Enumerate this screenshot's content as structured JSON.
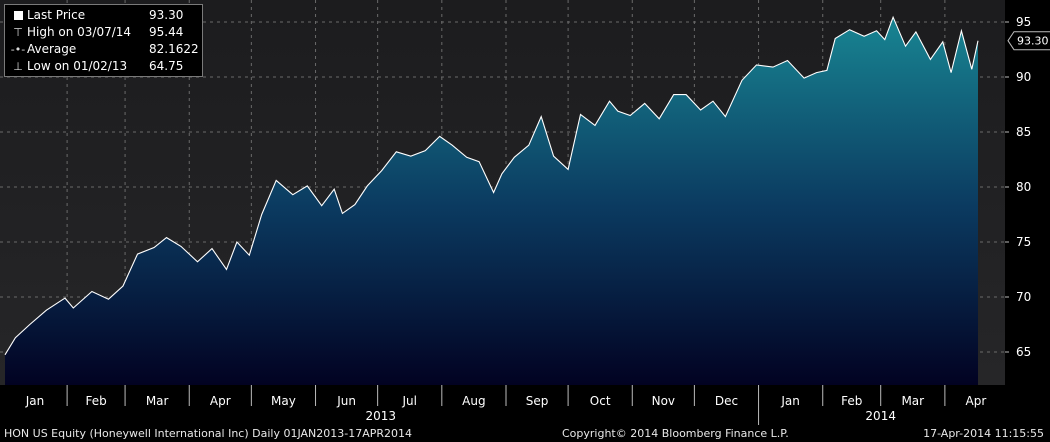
{
  "legend": {
    "last_price": {
      "label": "Last Price",
      "value": "93.30"
    },
    "high": {
      "label": "High on 03/07/14",
      "value": "95.44"
    },
    "average": {
      "label": "Average",
      "value": "82.1622"
    },
    "low": {
      "label": "Low on 01/02/13",
      "value": "64.75"
    }
  },
  "colors": {
    "background": "#000000",
    "plot_top": "#1c1c1e",
    "plot_bottom": "#262628",
    "area_top": "#17808f",
    "area_bottom": "#020222",
    "line": "#ffffff",
    "grid": "#6a6a6a"
  },
  "footer": {
    "left": "HON US Equity (Honeywell International Inc)  Daily 01JAN2013-17APR2014",
    "center": "Copyright© 2014 Bloomberg Finance L.P.",
    "right": "17-Apr-2014 11:15:55"
  },
  "chart_data": {
    "type": "area",
    "ylim": [
      62,
      97
    ],
    "yticks": [
      65,
      70,
      75,
      80,
      85,
      90,
      95
    ],
    "y_axis_side": "right",
    "last_value_label": "93.30",
    "grid": true,
    "legend_position": "top-left",
    "x_months": [
      "Jan",
      "Feb",
      "Mar",
      "Apr",
      "May",
      "Jun",
      "Jul",
      "Aug",
      "Sep",
      "Oct",
      "Nov",
      "Dec",
      "Jan",
      "Feb",
      "Mar",
      "Apr"
    ],
    "x_years": [
      "2013",
      "2014"
    ],
    "series": [
      {
        "dates": [
          "2013-01-02",
          "2013-01-07",
          "2013-01-14",
          "2013-01-22",
          "2013-01-31",
          "2013-02-04",
          "2013-02-13",
          "2013-02-21",
          "2013-02-28",
          "2013-03-07",
          "2013-03-15",
          "2013-03-21",
          "2013-03-28",
          "2013-04-05",
          "2013-04-12",
          "2013-04-19",
          "2013-04-24",
          "2013-04-30",
          "2013-05-06",
          "2013-05-13",
          "2013-05-21",
          "2013-05-28",
          "2013-06-04",
          "2013-06-10",
          "2013-06-14",
          "2013-06-20",
          "2013-06-26",
          "2013-07-03",
          "2013-07-10",
          "2013-07-17",
          "2013-07-24",
          "2013-07-31",
          "2013-08-06",
          "2013-08-13",
          "2013-08-19",
          "2013-08-26",
          "2013-08-30",
          "2013-09-05",
          "2013-09-12",
          "2013-09-18",
          "2013-09-24",
          "2013-10-01",
          "2013-10-07",
          "2013-10-14",
          "2013-10-21",
          "2013-10-25",
          "2013-10-31",
          "2013-11-07",
          "2013-11-14",
          "2013-11-21",
          "2013-11-27",
          "2013-12-04",
          "2013-12-10",
          "2013-12-16",
          "2013-12-24",
          "2013-12-31",
          "2014-01-08",
          "2014-01-15",
          "2014-01-23",
          "2014-01-29",
          "2014-02-03",
          "2014-02-07",
          "2014-02-14",
          "2014-02-21",
          "2014-02-27",
          "2014-03-03",
          "2014-03-07",
          "2014-03-13",
          "2014-03-18",
          "2014-03-25",
          "2014-03-31",
          "2014-04-04",
          "2014-04-09",
          "2014-04-14",
          "2014-04-17"
        ],
        "values": [
          64.75,
          66.3,
          67.5,
          68.8,
          69.9,
          69.0,
          70.5,
          69.8,
          71.0,
          73.9,
          74.5,
          75.4,
          74.6,
          73.2,
          74.4,
          72.5,
          75.0,
          73.8,
          77.5,
          80.6,
          79.3,
          80.1,
          78.3,
          79.8,
          77.6,
          78.4,
          80.1,
          81.5,
          83.2,
          82.8,
          83.3,
          84.6,
          83.8,
          82.7,
          82.3,
          79.5,
          81.2,
          82.7,
          83.8,
          86.4,
          82.8,
          81.6,
          86.6,
          85.6,
          87.8,
          86.9,
          86.5,
          87.6,
          86.2,
          88.4,
          88.4,
          87.0,
          87.8,
          86.4,
          89.7,
          91.1,
          90.9,
          91.5,
          89.9,
          90.4,
          90.6,
          93.5,
          94.3,
          93.7,
          94.2,
          93.4,
          95.44,
          92.8,
          94.1,
          91.6,
          93.2,
          90.4,
          94.2,
          90.7,
          93.3
        ]
      }
    ]
  }
}
